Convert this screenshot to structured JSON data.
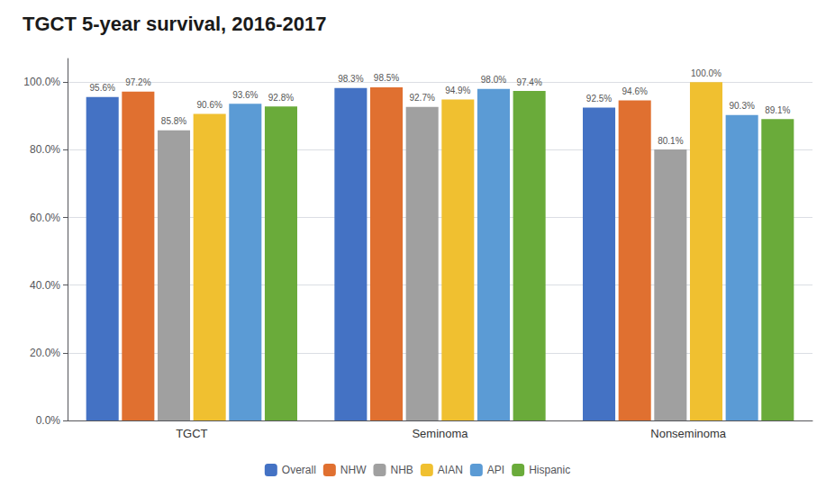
{
  "chart_data": {
    "type": "bar",
    "title": "TGCT 5-year survival, 2016-2017",
    "categories": [
      "TGCT",
      "Seminoma",
      "Nonseminoma"
    ],
    "series": [
      {
        "name": "Overall",
        "color": "#4472C4",
        "values": [
          95.6,
          98.3,
          92.5
        ],
        "value_labels": [
          "95.6%",
          "98.3%",
          "92.5%"
        ]
      },
      {
        "name": "NHW",
        "color": "#E07030",
        "values": [
          97.2,
          98.5,
          94.6
        ],
        "value_labels": [
          "97.2%",
          "98.5%",
          "94.6%"
        ]
      },
      {
        "name": "NHB",
        "color": "#A0A0A0",
        "values": [
          85.8,
          92.7,
          80.1
        ],
        "value_labels": [
          "85.8%",
          "92.7%",
          "80.1%"
        ]
      },
      {
        "name": "AIAN",
        "color": "#F0C030",
        "values": [
          90.6,
          94.9,
          100.0
        ],
        "value_labels": [
          "90.6%",
          "94.9%",
          "100.0%"
        ]
      },
      {
        "name": "API",
        "color": "#5B9BD5",
        "values": [
          93.6,
          98.0,
          90.3
        ],
        "value_labels": [
          "93.6%",
          "98.0%",
          "90.3%"
        ]
      },
      {
        "name": "Hispanic",
        "color": "#6AAB3A",
        "values": [
          92.8,
          97.4,
          89.1
        ],
        "value_labels": [
          "92.8%",
          "97.4%",
          "89.1%"
        ]
      }
    ],
    "ylim": [
      0,
      107
    ],
    "yticks": [
      {
        "value": 0,
        "label": "0.0%"
      },
      {
        "value": 20,
        "label": "20.0%"
      },
      {
        "value": 40,
        "label": "40.0%"
      },
      {
        "value": 60,
        "label": "60.0%"
      },
      {
        "value": 80,
        "label": "80.0%"
      },
      {
        "value": 100,
        "label": "100.0%"
      }
    ],
    "grid": true,
    "legend": "bottom",
    "data_labels": true
  }
}
